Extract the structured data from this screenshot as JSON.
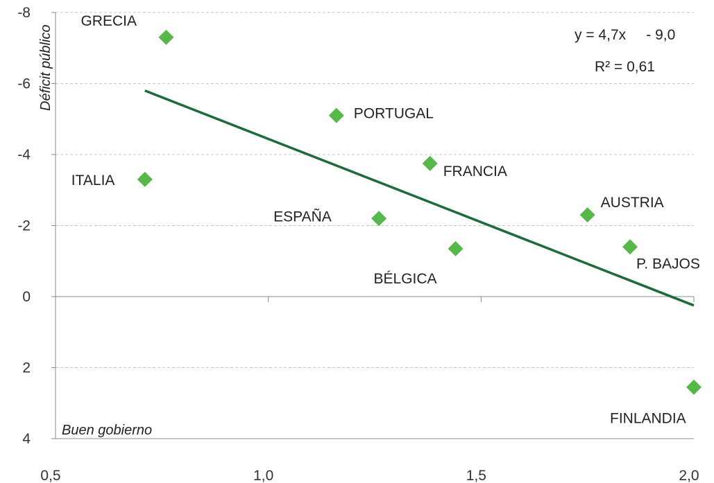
{
  "chart_data": {
    "type": "scatter",
    "xlim": [
      0.5,
      2.0
    ],
    "ylim": [
      -8,
      4
    ],
    "y_inverted": true,
    "x_ticks": [
      "0,5",
      "1,0",
      "1,5",
      "2,0"
    ],
    "y_ticks": [
      "-8",
      "-6",
      "-4",
      "-2",
      "0",
      "2",
      "4"
    ],
    "x_tick_values": [
      0.5,
      1.0,
      1.5,
      2.0
    ],
    "y_tick_values": [
      -8,
      -6,
      -4,
      -2,
      0,
      2,
      4
    ],
    "xlabel": "Buen gobierno",
    "ylabel": "Déficit público",
    "grid": "horizontal dashed",
    "marker_color": "#55b848",
    "trend_color": "#1e6b3a",
    "points": [
      {
        "name": "GRECIA",
        "x": 0.76,
        "y": -7.3
      },
      {
        "name": "ITALIA",
        "x": 0.71,
        "y": -3.3
      },
      {
        "name": "PORTUGAL",
        "x": 1.16,
        "y": -5.1
      },
      {
        "name": "FRANCIA",
        "x": 1.38,
        "y": -3.75
      },
      {
        "name": "ESPAÑA",
        "x": 1.26,
        "y": -2.2
      },
      {
        "name": "BÉLGICA",
        "x": 1.44,
        "y": -1.35
      },
      {
        "name": "AUSTRIA",
        "x": 1.75,
        "y": -2.3
      },
      {
        "name": "P. BAJOS",
        "x": 1.85,
        "y": -1.4
      },
      {
        "name": "FINLANDIA",
        "x": 2.0,
        "y": 2.55
      }
    ],
    "trendline": {
      "x": [
        0.71,
        2.0
      ],
      "y": [
        -5.8,
        0.25
      ],
      "equation": "y = 4,7x     - 9,0",
      "r2": "R² = 0,61"
    }
  }
}
